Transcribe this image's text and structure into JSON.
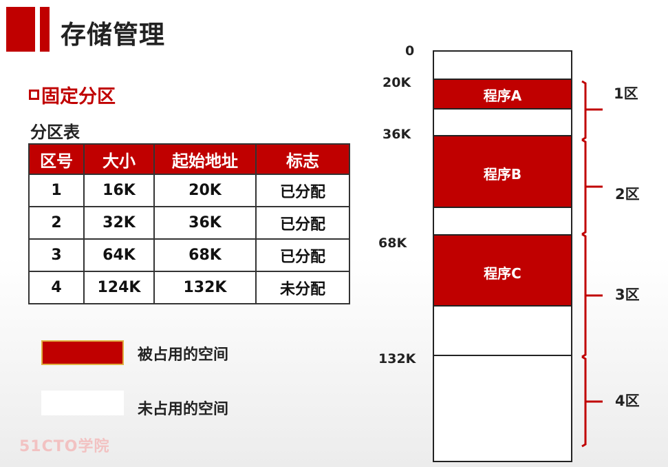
{
  "slide_title": "存储管理",
  "section": {
    "title": "固定分区"
  },
  "table": {
    "caption": "分区表",
    "headers": [
      "区号",
      "大小",
      "起始地址",
      "标志"
    ],
    "rows": [
      [
        "1",
        "16K",
        "20K",
        "已分配"
      ],
      [
        "2",
        "32K",
        "36K",
        "已分配"
      ],
      [
        "3",
        "64K",
        "68K",
        "已分配"
      ],
      [
        "4",
        "124K",
        "132K",
        "未分配"
      ]
    ]
  },
  "legend": {
    "used_label": "被占用的空间",
    "free_label": "未占用的空间"
  },
  "memory_map": {
    "addresses": [
      "0",
      "20K",
      "36K",
      "68K",
      "132K"
    ],
    "programs": [
      "程序A",
      "程序B",
      "程序C"
    ],
    "zones": [
      "1区",
      "2区",
      "3区",
      "4区"
    ]
  },
  "colors": {
    "accent": "#c00000",
    "free": "#ffffff"
  },
  "watermark": "51CTO学院"
}
